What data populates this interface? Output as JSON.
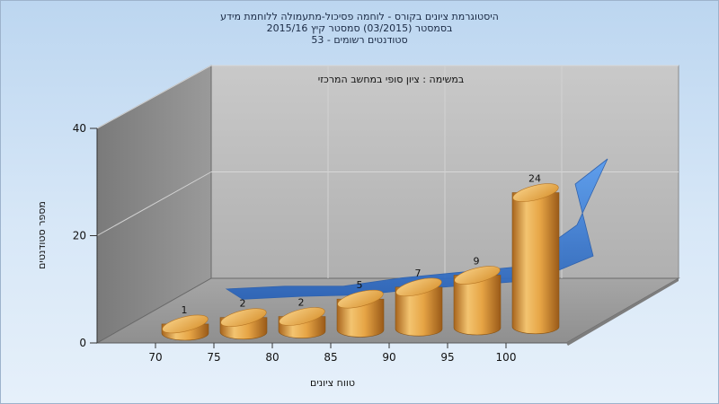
{
  "chart_data": {
    "type": "bar",
    "title_lines": [
      "היסטוגרמת ציונים בקורס - לוחמה פסיכול-מתעמולה ללוחמת מידע",
      "בסמסטר  (03/2015)  סמסטר קיץ  2015/16",
      "סטודנטים רשומים - 53"
    ],
    "subtitle": "במשימה : ציון סופי במחשב המרכזי",
    "xlabel": "טווח ציונים",
    "ylabel": "מספר סטודנטים",
    "categories": [
      "70",
      "75",
      "80",
      "85",
      "90",
      "95",
      "100"
    ],
    "values": [
      1,
      2,
      2,
      5,
      7,
      9,
      24
    ],
    "y_ticks": [
      0,
      20,
      40
    ],
    "ylim": [
      0,
      40
    ],
    "series": [
      {
        "name": "",
        "kind": "bar-cylinder",
        "values": [
          1,
          2,
          2,
          5,
          7,
          9,
          24
        ],
        "color": "#e3a448"
      },
      {
        "name": "",
        "kind": "ribbon",
        "values": [
          1,
          2,
          2,
          5,
          7,
          9,
          24
        ],
        "color": "#3b7fd6"
      }
    ],
    "grid": true,
    "legend": "none"
  }
}
